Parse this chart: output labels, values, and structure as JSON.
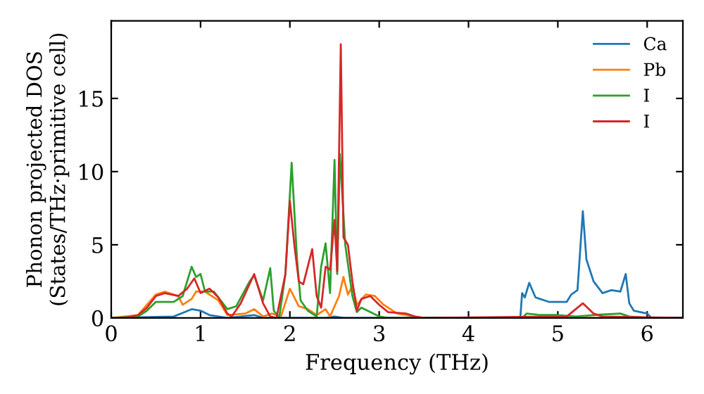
{
  "chart_data": {
    "type": "line",
    "xlabel": "Frequency (THz)",
    "ylabel": "Phonon projected DOS\n(States/THz·primitive cell)",
    "xlim": [
      0,
      6.4
    ],
    "ylim": [
      0,
      20.3
    ],
    "xticks": [
      0,
      1,
      2,
      3,
      4,
      5,
      6
    ],
    "yticks": [
      0,
      5,
      10,
      15
    ],
    "legend": "top right",
    "grid": false,
    "series": [
      {
        "name": "Ca",
        "color": "#1f77b4",
        "x": [
          0,
          0.7,
          0.9,
          1.0,
          1.1,
          1.3,
          1.6,
          1.7,
          2.4,
          2.5,
          2.6,
          4.58,
          4.6,
          4.63,
          4.68,
          4.75,
          4.9,
          5.1,
          5.15,
          5.22,
          5.28,
          5.32,
          5.4,
          5.5,
          5.6,
          5.7,
          5.76,
          5.8,
          5.85,
          6.0,
          6.05,
          6.4
        ],
        "values": [
          0,
          0.1,
          0.6,
          0.5,
          0.2,
          0,
          0.2,
          0,
          0,
          0.1,
          0,
          0,
          1.7,
          1.4,
          2.4,
          1.4,
          1.1,
          1.1,
          1.6,
          1.9,
          7.3,
          4.0,
          2.5,
          1.7,
          1.9,
          1.8,
          3.0,
          1.0,
          0.5,
          0.3,
          0,
          0
        ]
      },
      {
        "name": "Pb",
        "color": "#ff7f0e",
        "x": [
          0,
          0.3,
          0.5,
          0.6,
          0.75,
          0.8,
          0.9,
          0.95,
          1.05,
          1.2,
          1.3,
          1.5,
          1.6,
          1.7,
          1.8,
          1.9,
          2.0,
          2.1,
          2.2,
          2.3,
          2.4,
          2.45,
          2.55,
          2.6,
          2.65,
          2.7,
          2.75,
          2.85,
          2.95,
          3.05,
          3.2,
          3.4,
          3.5,
          6.4
        ],
        "values": [
          0,
          0.2,
          1.6,
          1.8,
          1.5,
          0.9,
          1.3,
          1.8,
          1.8,
          1.2,
          0.2,
          0.3,
          0.6,
          0.1,
          0.3,
          0.1,
          2.0,
          0.8,
          0.6,
          0.2,
          0.6,
          0.1,
          1.5,
          2.8,
          1.6,
          2.2,
          0.9,
          1.6,
          1.5,
          0.9,
          0.3,
          0.1,
          0,
          0
        ]
      },
      {
        "name": "I",
        "color": "#2ca02c",
        "x": [
          0,
          0.3,
          0.4,
          0.5,
          0.7,
          0.8,
          0.9,
          0.95,
          1.0,
          1.05,
          1.15,
          1.3,
          1.4,
          1.55,
          1.6,
          1.7,
          1.78,
          1.82,
          1.88,
          1.95,
          2.02,
          2.08,
          2.12,
          2.2,
          2.3,
          2.35,
          2.4,
          2.45,
          2.5,
          2.53,
          2.56,
          2.62,
          2.7,
          2.75,
          2.8,
          2.9,
          3.0,
          3.1,
          4.6,
          4.65,
          4.8,
          5.0,
          5.2,
          5.4,
          5.7,
          5.8,
          6.0,
          6.4
        ],
        "values": [
          0,
          0.1,
          0.5,
          1.1,
          1.1,
          1.5,
          3.5,
          2.8,
          3.0,
          1.8,
          1.8,
          0.6,
          0.8,
          2.5,
          2.9,
          1.2,
          3.4,
          0.5,
          0,
          3,
          10.6,
          4,
          1.2,
          0.5,
          0.1,
          3.5,
          5.1,
          1.7,
          10.8,
          3,
          11.2,
          5,
          1.5,
          0.4,
          0.7,
          0.4,
          0.1,
          0,
          0,
          0.3,
          0.2,
          0.2,
          0.1,
          0.2,
          0.3,
          0.1,
          0,
          0
        ]
      },
      {
        "name": "I",
        "color": "#d62728",
        "x": [
          0,
          0.15,
          0.3,
          0.4,
          0.5,
          0.6,
          0.75,
          0.85,
          0.93,
          1.0,
          1.1,
          1.2,
          1.3,
          1.35,
          1.45,
          1.6,
          1.7,
          1.78,
          1.85,
          1.95,
          2.0,
          2.05,
          2.1,
          2.15,
          2.25,
          2.3,
          2.35,
          2.4,
          2.45,
          2.5,
          2.53,
          2.57,
          2.6,
          2.65,
          2.7,
          2.75,
          2.8,
          2.9,
          3.0,
          3.1,
          3.3,
          3.4,
          3.5,
          5.1,
          5.28,
          5.4,
          5.5,
          6.4
        ],
        "values": [
          0,
          0,
          0.2,
          0.7,
          1.5,
          1.7,
          1.5,
          2.0,
          2.7,
          1.7,
          2.0,
          1.4,
          0.3,
          0.1,
          1.0,
          3.0,
          1.0,
          0.1,
          0,
          3,
          8.0,
          5,
          2.5,
          2.3,
          4.7,
          1.5,
          0.7,
          3.5,
          3.3,
          6.7,
          3.2,
          18.7,
          5.5,
          5.0,
          2.5,
          0.5,
          1.3,
          1.5,
          0.9,
          0.4,
          0.3,
          0.1,
          0,
          0.1,
          1.0,
          0.3,
          0.1,
          0
        ]
      }
    ]
  }
}
